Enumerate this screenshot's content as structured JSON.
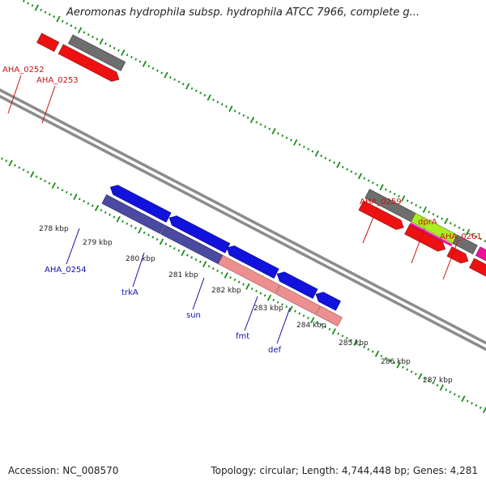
{
  "title": "Aeromonas hydrophila subsp. hydrophila ATCC 7966, complete g...",
  "footer": {
    "accession": "Accession: NC_008570",
    "topology": "Topology: circular; Length: 4,744,448 bp; Genes: 4,281"
  },
  "colors": {
    "backbone": "#8c8c8c",
    "ticks": "#1a8c1a",
    "gene_label_red": "#cc1111",
    "gene_label_blue": "#1111aa",
    "gray_feature": "#6e6e6e",
    "red_feature": "#ee1111",
    "blue_feature": "#1212dd",
    "navy_feature": "#4a4aa0",
    "pink_feature": "#ee8f8f",
    "lime_feature": "#aaee22",
    "magenta_feature": "#ee1199",
    "cyan_feature": "#22aadd"
  },
  "scale_labels": [
    "278 kbp",
    "279 kbp",
    "280 kbp",
    "281 kbp",
    "282 kbp",
    "283 kbp",
    "284 kbp",
    "285 kbp",
    "286 kbp",
    "287 kbp"
  ],
  "gene_labels": [
    {
      "text": "AHA_0252",
      "color": "red"
    },
    {
      "text": "AHA_0253",
      "color": "red"
    },
    {
      "text": "AHA_0259",
      "color": "red"
    },
    {
      "text": "dprA",
      "color": "red"
    },
    {
      "text": "AHA_0261",
      "color": "red"
    },
    {
      "text": "AHA_0254",
      "color": "blue"
    },
    {
      "text": "trkA",
      "color": "blue"
    },
    {
      "text": "sun",
      "color": "blue"
    },
    {
      "text": "fmt",
      "color": "blue"
    },
    {
      "text": "def",
      "color": "blue"
    }
  ]
}
